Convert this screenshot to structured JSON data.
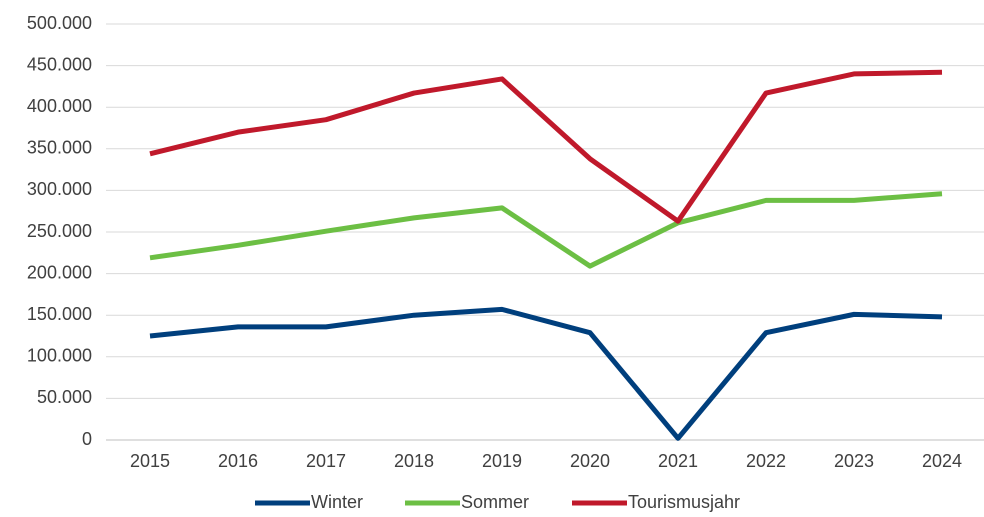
{
  "chart_data": {
    "type": "line",
    "categories": [
      "2015",
      "2016",
      "2017",
      "2018",
      "2019",
      "2020",
      "2021",
      "2022",
      "2023",
      "2024"
    ],
    "series": [
      {
        "name": "Winter",
        "color": "#003f7d",
        "values": [
          125000,
          136000,
          136000,
          150000,
          157000,
          129000,
          2000,
          129000,
          151000,
          148000
        ]
      },
      {
        "name": "Sommer",
        "color": "#6cbf44",
        "values": [
          219000,
          234000,
          251000,
          267000,
          279000,
          209000,
          261000,
          288000,
          288000,
          296000
        ]
      },
      {
        "name": "Tourismusjahr",
        "color": "#c0192b",
        "values": [
          344000,
          370000,
          385000,
          417000,
          434000,
          338000,
          263000,
          417000,
          440000,
          442000
        ]
      }
    ],
    "ylim": [
      0,
      500000
    ],
    "yticks": [
      0,
      {
        "value": 50000,
        "label": "50.000"
      },
      {
        "value": 100000,
        "label": "100.000"
      },
      {
        "value": 150000,
        "label": "150.000"
      },
      {
        "value": 200000,
        "label": "200.000"
      },
      {
        "value": 250000,
        "label": "250.000"
      },
      {
        "value": 300000,
        "label": "300.000"
      },
      {
        "value": 350000,
        "label": "350.000"
      },
      {
        "value": 400000,
        "label": "400.000"
      },
      {
        "value": 450000,
        "label": "450.000"
      },
      {
        "value": 500000,
        "label": "500.000"
      }
    ],
    "grid": true,
    "legend": "bottom"
  }
}
